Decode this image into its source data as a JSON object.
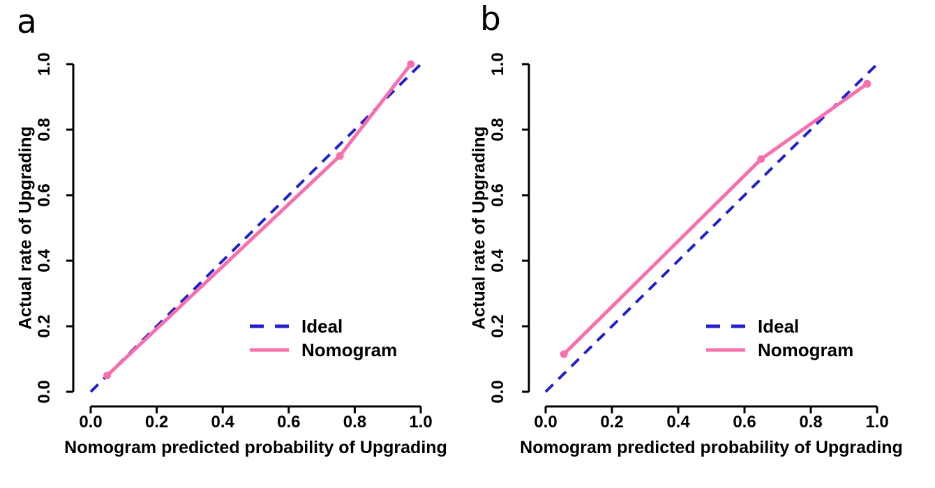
{
  "colors": {
    "ideal_line": "#2020CC",
    "nomogram_line": "#F76FAC",
    "axis": "#000000",
    "text": "#000000",
    "background": "#FFFFFF"
  },
  "chart_data": [
    {
      "type": "line",
      "panel_label": "a",
      "xlabel": "Nomogram predicted probability of Upgrading",
      "ylabel": "Actual rate of Upgrading",
      "xlim": [
        0,
        1
      ],
      "ylim": [
        0,
        1
      ],
      "xticks": [
        0.0,
        0.2,
        0.4,
        0.6,
        0.8,
        1.0
      ],
      "yticks": [
        0.0,
        0.2,
        0.4,
        0.6,
        0.8,
        1.0
      ],
      "xtick_labels": [
        "0.0",
        "0.2",
        "0.4",
        "0.6",
        "0.8",
        "1.0"
      ],
      "ytick_labels": [
        "0.0",
        "0.2",
        "0.4",
        "0.6",
        "0.8",
        "1.0"
      ],
      "grid": false,
      "legend_position": "inside lower-right",
      "series": [
        {
          "name": "Ideal",
          "style": "dashed",
          "color": "#2020CC",
          "markers": false,
          "points": [
            [
              0.0,
              0.0
            ],
            [
              1.0,
              1.0
            ]
          ]
        },
        {
          "name": "Nomogram",
          "style": "solid",
          "color": "#F76FAC",
          "markers": true,
          "points": [
            [
              0.05,
              0.05
            ],
            [
              0.755,
              0.72
            ],
            [
              0.97,
              1.0
            ]
          ]
        }
      ]
    },
    {
      "type": "line",
      "panel_label": "b",
      "xlabel": "Nomogram predicted probability of Upgrading",
      "ylabel": "Actual rate of Upgrading",
      "xlim": [
        0,
        1
      ],
      "ylim": [
        0,
        1
      ],
      "xticks": [
        0.0,
        0.2,
        0.4,
        0.6,
        0.8,
        1.0
      ],
      "yticks": [
        0.0,
        0.2,
        0.4,
        0.6,
        0.8,
        1.0
      ],
      "xtick_labels": [
        "0.0",
        "0.2",
        "0.4",
        "0.6",
        "0.8",
        "1.0"
      ],
      "ytick_labels": [
        "0.0",
        "0.2",
        "0.4",
        "0.6",
        "0.8",
        "1.0"
      ],
      "grid": false,
      "legend_position": "inside lower-right",
      "series": [
        {
          "name": "Ideal",
          "style": "dashed",
          "color": "#2020CC",
          "markers": false,
          "points": [
            [
              0.0,
              0.0
            ],
            [
              1.0,
              1.0
            ]
          ]
        },
        {
          "name": "Nomogram",
          "style": "solid",
          "color": "#F76FAC",
          "markers": true,
          "points": [
            [
              0.055,
              0.115
            ],
            [
              0.65,
              0.71
            ],
            [
              0.97,
              0.94
            ]
          ]
        }
      ]
    }
  ]
}
